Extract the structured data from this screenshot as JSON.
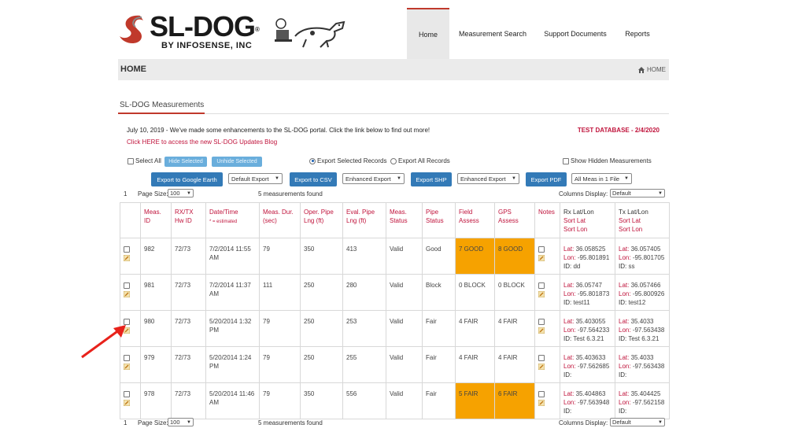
{
  "brand": {
    "name": "SL-DOG",
    "reg": "®",
    "subtitle": "BY INFOSENSE, INC"
  },
  "nav": {
    "items": [
      "Home",
      "Measurement Search",
      "Support Documents",
      "Reports"
    ],
    "active": "Home"
  },
  "breadcrumb": {
    "title": "HOME",
    "crumb": "HOME"
  },
  "section": {
    "title": "SL-DOG Measurements"
  },
  "notice": {
    "text": "July 10, 2019 - We've made some enhancements to the SL-DOG portal. Click the link below to find out more!",
    "link": "Click HERE to access the new SL-DOG Updates Blog",
    "testdb": "TEST DATABASE - 2/4/2020"
  },
  "controls": {
    "select_all": "Select All",
    "hide_selected": "Hide Selected",
    "unhide_selected": "Unhide Selected",
    "export_selected": "Export Selected Records",
    "export_all": "Export All Records",
    "show_hidden": "Show Hidden Measurements",
    "export_google_earth": "Export to Google Earth",
    "default_export": "Default Export",
    "export_csv": "Export to CSV",
    "enhanced_export_1": "Enhanced Export",
    "export_shp": "Export SHP",
    "enhanced_export_2": "Enhanced Export",
    "export_pdf": "Export PDF",
    "all_meas": "All Meas in 1 File"
  },
  "pager": {
    "page": "1",
    "page_size_label": "Page Size:",
    "page_size": "100",
    "found": "5 measurements found",
    "columns_display_label": "Columns Display:",
    "columns_display": "Default"
  },
  "table": {
    "headers": {
      "meas_id": "Meas. ID",
      "rxtx": "RX/TX Hw ID",
      "datetime": "Date/Time",
      "datetime_note": "* = estimated",
      "dur": "Meas. Dur. (sec)",
      "oper": "Oper. Pipe Lng (ft)",
      "eval": "Eval. Pipe Lng (ft)",
      "status": "Meas. Status",
      "pipe": "Pipe Status",
      "field": "Field Assess",
      "gps": "GPS Assess",
      "notes": "Notes",
      "rx": "Rx Lat/Lon",
      "rx_sort_lat": "Sort Lat",
      "rx_sort_lon": "Sort Lon",
      "tx": "Tx Lat/Lon",
      "tx_sort_lat": "Sort Lat",
      "tx_sort_lon": "Sort Lon"
    },
    "labels": {
      "lat": "Lat:",
      "lon": "Lon:",
      "id": "ID:"
    },
    "rows": [
      {
        "id": "982",
        "hw": "72/73",
        "dt": "7/2/2014 11:55 AM",
        "dur": "79",
        "oper": "350",
        "eval": "413",
        "status": "Valid",
        "pipe": "Good",
        "field": "7 GOOD",
        "gps": "8 GOOD",
        "field_hl": true,
        "gps_hl": true,
        "rx_lat": "36.058525",
        "rx_lon": "-95.801891",
        "rx_id": "dd",
        "tx_lat": "36.057405",
        "tx_lon": "-95.801705",
        "tx_id": "ss"
      },
      {
        "id": "981",
        "hw": "72/73",
        "dt": "7/2/2014 11:37 AM",
        "dur": "111",
        "oper": "250",
        "eval": "280",
        "status": "Valid",
        "pipe": "Block",
        "field": "0 BLOCK",
        "gps": "0 BLOCK",
        "field_hl": false,
        "gps_hl": false,
        "rx_lat": "36.05747",
        "rx_lon": "-95.801873",
        "rx_id": "test11",
        "tx_lat": "36.057466",
        "tx_lon": "-95.800926",
        "tx_id": "test12"
      },
      {
        "id": "980",
        "hw": "72/73",
        "dt": "5/20/2014 1:32 PM",
        "dur": "79",
        "oper": "250",
        "eval": "253",
        "status": "Valid",
        "pipe": "Fair",
        "field": "4 FAIR",
        "gps": "4 FAIR",
        "field_hl": false,
        "gps_hl": false,
        "rx_lat": "35.403055",
        "rx_lon": "-97.564233",
        "rx_id": "Test 6.3.21",
        "tx_lat": "35.4033",
        "tx_lon": "-97.563438",
        "tx_id": "Test 6.3.21"
      },
      {
        "id": "979",
        "hw": "72/73",
        "dt": "5/20/2014 1:24 PM",
        "dur": "79",
        "oper": "250",
        "eval": "255",
        "status": "Valid",
        "pipe": "Fair",
        "field": "4 FAIR",
        "gps": "4 FAIR",
        "field_hl": false,
        "gps_hl": false,
        "rx_lat": "35.403633",
        "rx_lon": "-97.562685",
        "rx_id": "",
        "tx_lat": "35.4033",
        "tx_lon": "-97.563438",
        "tx_id": ""
      },
      {
        "id": "978",
        "hw": "72/73",
        "dt": "5/20/2014 11:46 AM",
        "dur": "79",
        "oper": "350",
        "eval": "556",
        "status": "Valid",
        "pipe": "Fair",
        "field": "5 FAIR",
        "gps": "6 FAIR",
        "field_hl": true,
        "gps_hl": true,
        "rx_lat": "35.404863",
        "rx_lon": "-97.563948",
        "rx_id": "",
        "tx_lat": "35.404425",
        "tx_lon": "-97.562158",
        "tx_id": ""
      }
    ]
  },
  "colors": {
    "accent": "#c0143c",
    "button": "#337ab7",
    "highlight": "#f6a200",
    "annotation": "#e8221b"
  },
  "icons": [
    "home-icon",
    "pencil-icon",
    "red-arrow-annotation"
  ]
}
